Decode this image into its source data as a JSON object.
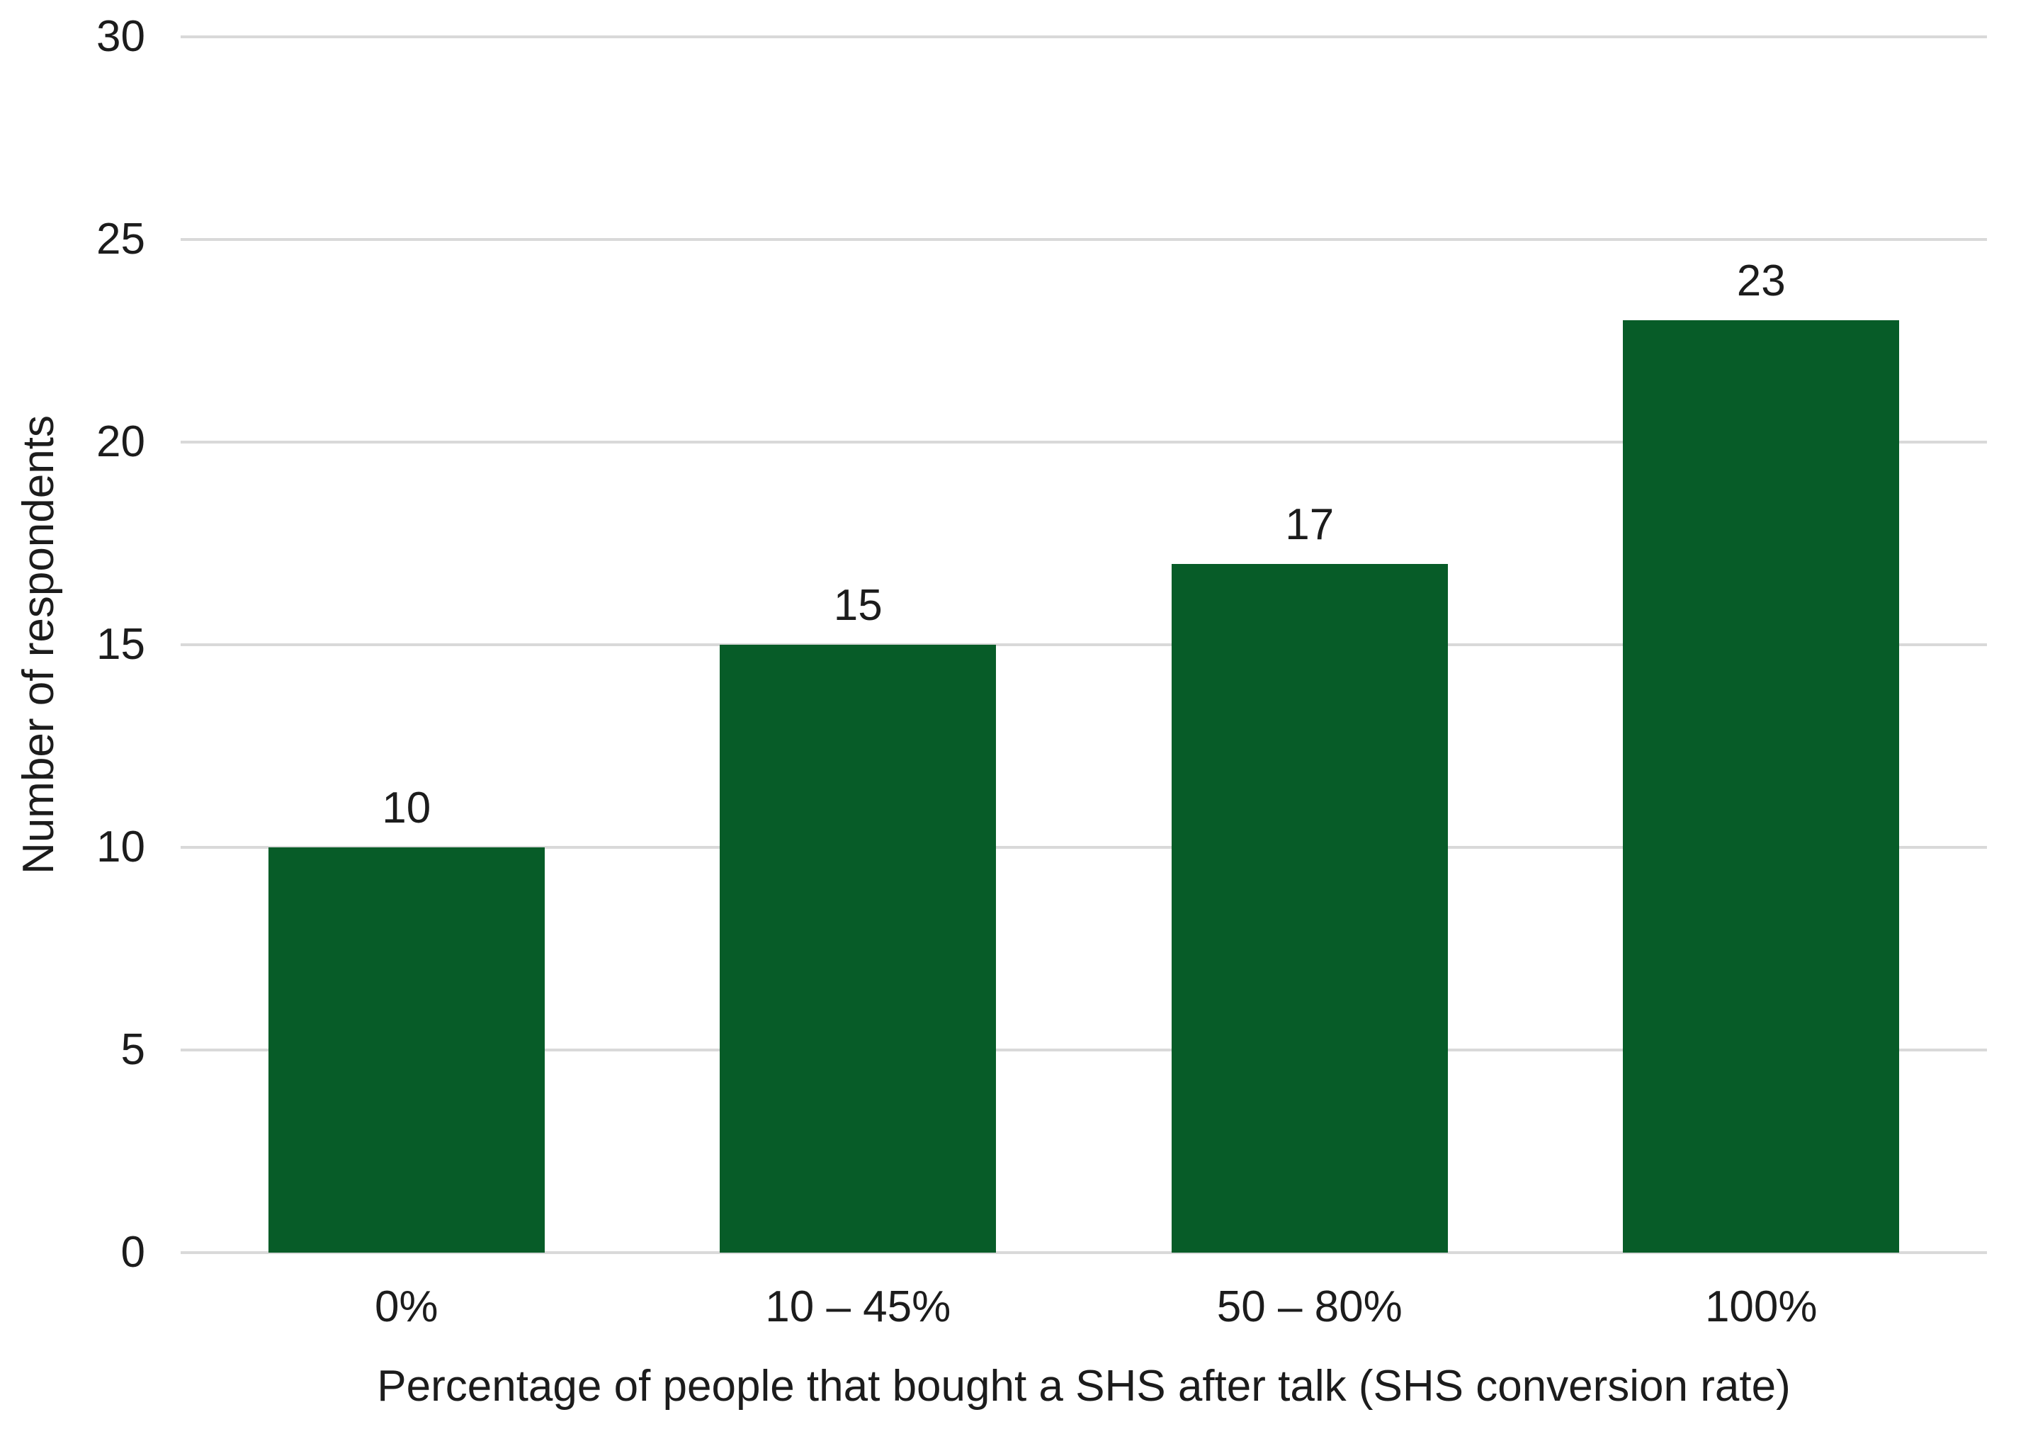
{
  "chart_data": {
    "type": "bar",
    "title": "",
    "categories": [
      "0%",
      "10 – 45%",
      "50 – 80%",
      "100%"
    ],
    "values": [
      10,
      15,
      17,
      23
    ],
    "data_labels": [
      "10",
      "15",
      "17",
      "23"
    ],
    "xlabel": "Percentage of people that bought a SHS after talk (SHS conversion rate)",
    "ylabel": "Number of respondents",
    "ylim": [
      0,
      30
    ],
    "yticks": [
      0,
      5,
      10,
      15,
      20,
      25,
      30
    ],
    "grid": true,
    "legend": "none",
    "colors": {
      "bar": "#075c28",
      "gridline": "#d9d9d9",
      "text": "#1c1c1c",
      "background": "#ffffff"
    }
  }
}
